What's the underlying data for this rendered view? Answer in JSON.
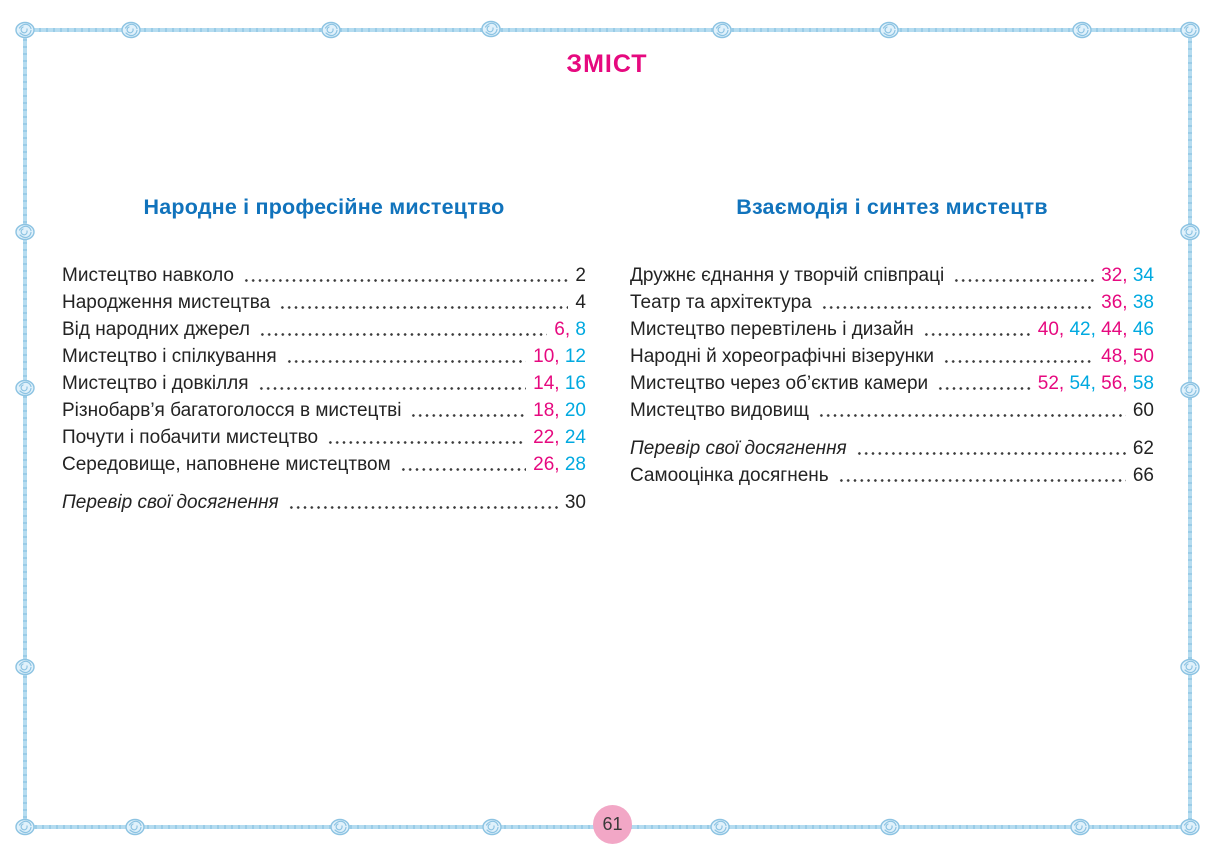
{
  "page": {
    "title": "ЗМІСТ",
    "page_number": "61"
  },
  "colors": {
    "title_magenta": "#E6097F",
    "heading_blue": "#1173BC",
    "page_magenta": "#E6097F",
    "page_cyan": "#00A9E0",
    "body_text": "#232323",
    "rope_blue": "#B5DCF0",
    "badge_pink": "#F2A7C6"
  },
  "columns": [
    {
      "heading": "Народне і професійне мистецтво",
      "entries": [
        {
          "title": "Мистецтво навколо",
          "italic": false,
          "gap_before": false,
          "pages": [
            {
              "n": "2",
              "color": "black"
            }
          ]
        },
        {
          "title": "Народження мистецтва",
          "italic": false,
          "gap_before": false,
          "pages": [
            {
              "n": "4",
              "color": "black"
            }
          ]
        },
        {
          "title": "Від народних джерел",
          "italic": false,
          "gap_before": false,
          "pages": [
            {
              "n": "6",
              "color": "magenta"
            },
            {
              "n": "8",
              "color": "cyan"
            }
          ]
        },
        {
          "title": "Мистецтво і спілкування",
          "italic": false,
          "gap_before": false,
          "pages": [
            {
              "n": "10",
              "color": "magenta"
            },
            {
              "n": "12",
              "color": "cyan"
            }
          ]
        },
        {
          "title": "Мистецтво і довкілля",
          "italic": false,
          "gap_before": false,
          "pages": [
            {
              "n": "14",
              "color": "magenta"
            },
            {
              "n": "16",
              "color": "cyan"
            }
          ]
        },
        {
          "title": "Різнобарв’я багатоголосся в мистецтві",
          "italic": false,
          "gap_before": false,
          "pages": [
            {
              "n": "18",
              "color": "magenta"
            },
            {
              "n": "20",
              "color": "cyan"
            }
          ]
        },
        {
          "title": "Почути і побачити мистецтво",
          "italic": false,
          "gap_before": false,
          "pages": [
            {
              "n": "22",
              "color": "magenta"
            },
            {
              "n": "24",
              "color": "cyan"
            }
          ]
        },
        {
          "title": "Середовище, наповнене мистецтвом",
          "italic": false,
          "gap_before": false,
          "pages": [
            {
              "n": "26",
              "color": "magenta"
            },
            {
              "n": "28",
              "color": "cyan"
            }
          ]
        },
        {
          "title": "Перевір свої досягнення",
          "italic": true,
          "gap_before": true,
          "pages": [
            {
              "n": "30",
              "color": "black"
            }
          ]
        }
      ]
    },
    {
      "heading": "Взаємодія і синтез мистецтв",
      "entries": [
        {
          "title": "Дружнє єднання у творчій співпраці",
          "italic": false,
          "gap_before": false,
          "pages": [
            {
              "n": "32",
              "color": "magenta"
            },
            {
              "n": "34",
              "color": "cyan"
            }
          ]
        },
        {
          "title": "Театр та архітектура",
          "italic": false,
          "gap_before": false,
          "pages": [
            {
              "n": "36",
              "color": "magenta"
            },
            {
              "n": "38",
              "color": "cyan"
            }
          ]
        },
        {
          "title": "Мистецтво перевтілень і дизайн",
          "italic": false,
          "gap_before": false,
          "pages": [
            {
              "n": "40",
              "color": "magenta"
            },
            {
              "n": "42",
              "color": "cyan"
            },
            {
              "n": "44",
              "color": "magenta"
            },
            {
              "n": "46",
              "color": "cyan"
            }
          ]
        },
        {
          "title": "Народні й хореографічні візерунки",
          "italic": false,
          "gap_before": false,
          "pages": [
            {
              "n": "48",
              "color": "magenta"
            },
            {
              "n": "50",
              "color": "magenta"
            }
          ]
        },
        {
          "title": "Мистецтво через об’єктив камери",
          "italic": false,
          "gap_before": false,
          "pages": [
            {
              "n": "52",
              "color": "magenta"
            },
            {
              "n": "54",
              "color": "cyan"
            },
            {
              "n": "56",
              "color": "magenta"
            },
            {
              "n": "58",
              "color": "cyan"
            }
          ]
        },
        {
          "title": "Мистецтво видовищ",
          "italic": false,
          "gap_before": false,
          "pages": [
            {
              "n": "60",
              "color": "black"
            }
          ]
        },
        {
          "title": "Перевір свої досягнення",
          "italic": true,
          "gap_before": true,
          "pages": [
            {
              "n": "62",
              "color": "black"
            }
          ]
        },
        {
          "title": "Самооцінка досягнень",
          "italic": false,
          "gap_before": false,
          "pages": [
            {
              "n": "66",
              "color": "black"
            }
          ]
        }
      ]
    }
  ]
}
